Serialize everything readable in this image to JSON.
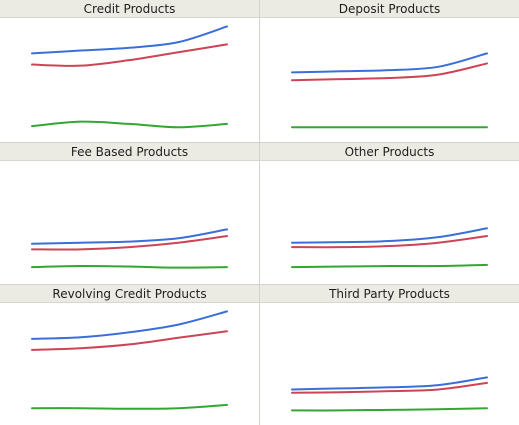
{
  "chart_data": [
    {
      "type": "line",
      "title": "Credit Products",
      "x": [
        0,
        0.25,
        0.5,
        0.75,
        1
      ],
      "ylim": [
        0,
        1
      ],
      "series": [
        {
          "color": "#3a6fd8",
          "values": [
            0.72,
            0.745,
            0.77,
            0.82,
            0.96
          ]
        },
        {
          "color": "#cc4455",
          "values": [
            0.62,
            0.61,
            0.66,
            0.73,
            0.8
          ]
        },
        {
          "color": "#33a633",
          "values": [
            0.07,
            0.11,
            0.09,
            0.06,
            0.09
          ]
        }
      ]
    },
    {
      "type": "line",
      "title": "Deposit Products",
      "x": [
        0,
        0.25,
        0.5,
        0.75,
        1
      ],
      "ylim": [
        0,
        1
      ],
      "series": [
        {
          "color": "#3a6fd8",
          "values": [
            0.55,
            0.56,
            0.57,
            0.6,
            0.72
          ]
        },
        {
          "color": "#cc4455",
          "values": [
            0.48,
            0.49,
            0.5,
            0.53,
            0.63
          ]
        },
        {
          "color": "#33a633",
          "values": [
            0.06,
            0.06,
            0.06,
            0.06,
            0.06
          ]
        }
      ]
    },
    {
      "type": "line",
      "title": "Fee Based Products",
      "x": [
        0,
        0.25,
        0.5,
        0.75,
        1
      ],
      "ylim": [
        0,
        1
      ],
      "series": [
        {
          "color": "#3a6fd8",
          "values": [
            0.29,
            0.3,
            0.31,
            0.34,
            0.42
          ]
        },
        {
          "color": "#cc4455",
          "values": [
            0.24,
            0.24,
            0.26,
            0.3,
            0.36
          ]
        },
        {
          "color": "#33a633",
          "values": [
            0.08,
            0.09,
            0.085,
            0.075,
            0.08
          ]
        }
      ]
    },
    {
      "type": "line",
      "title": "Other Products",
      "x": [
        0,
        0.25,
        0.5,
        0.75,
        1
      ],
      "ylim": [
        0,
        1
      ],
      "series": [
        {
          "color": "#3a6fd8",
          "values": [
            0.3,
            0.305,
            0.315,
            0.35,
            0.43
          ]
        },
        {
          "color": "#cc4455",
          "values": [
            0.26,
            0.26,
            0.27,
            0.3,
            0.36
          ]
        },
        {
          "color": "#33a633",
          "values": [
            0.08,
            0.085,
            0.09,
            0.09,
            0.1
          ]
        }
      ]
    },
    {
      "type": "line",
      "title": "Revolving Credit Products",
      "x": [
        0,
        0.25,
        0.5,
        0.75,
        1
      ],
      "ylim": [
        0,
        1
      ],
      "series": [
        {
          "color": "#3a6fd8",
          "values": [
            0.71,
            0.725,
            0.77,
            0.84,
            0.96
          ]
        },
        {
          "color": "#cc4455",
          "values": [
            0.61,
            0.625,
            0.66,
            0.72,
            0.78
          ]
        },
        {
          "color": "#33a633",
          "values": [
            0.08,
            0.08,
            0.075,
            0.08,
            0.11
          ]
        }
      ]
    },
    {
      "type": "line",
      "title": "Third Party Products",
      "x": [
        0,
        0.25,
        0.5,
        0.75,
        1
      ],
      "ylim": [
        0,
        1
      ],
      "series": [
        {
          "color": "#3a6fd8",
          "values": [
            0.25,
            0.26,
            0.27,
            0.29,
            0.36
          ]
        },
        {
          "color": "#cc4455",
          "values": [
            0.22,
            0.225,
            0.235,
            0.25,
            0.31
          ]
        },
        {
          "color": "#33a633",
          "values": [
            0.06,
            0.06,
            0.065,
            0.07,
            0.08
          ]
        }
      ]
    }
  ]
}
